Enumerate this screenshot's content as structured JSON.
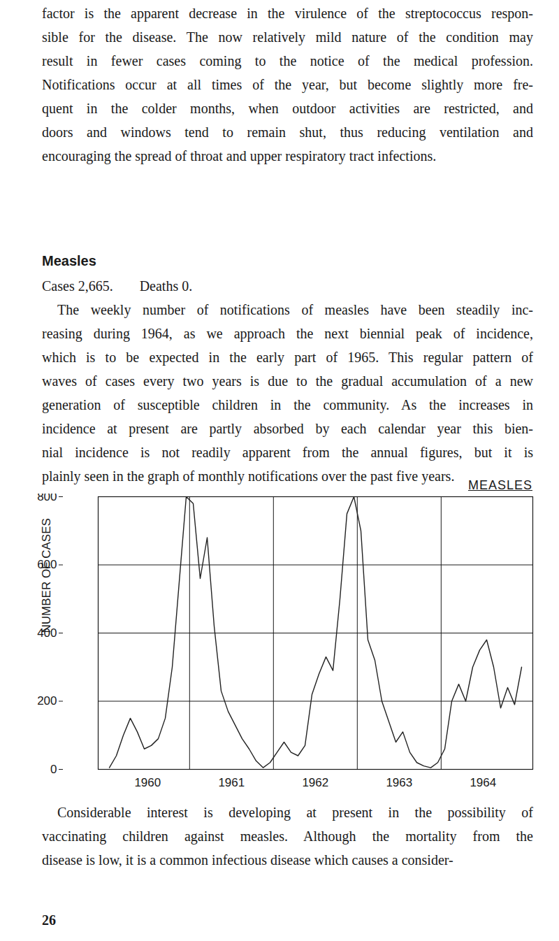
{
  "document": {
    "paragraph_1": [
      "factor is the apparent decrease in the virulence of the streptococcus respon-",
      "sible for the disease. The now relatively mild nature of the condition may",
      "result in fewer cases coming to the notice of the medical profession.",
      "Notifications occur at all times of the year, but become slightly more fre-",
      "quent in the colder months, when outdoor activities are restricted, and",
      "doors and windows tend to remain shut, thus reducing ventilation and",
      "encouraging the spread of throat and upper respiratory tract infections."
    ],
    "heading": "Measles",
    "stats": [
      "Cases 2,665.",
      "Deaths 0."
    ],
    "paragraph_2": [
      "The weekly number of notifications of measles have been steadily inc-",
      "reasing during 1964, as we approach the next biennial peak of incidence,",
      "which is to be expected in the early part of 1965. This regular pattern of",
      "waves of cases every two years is due to the gradual accumulation of a new",
      "generation of susceptible children in the community. As the increases in",
      "incidence at present are partly absorbed by each calendar year this bien-",
      "nial incidence is not readily apparent from the annual figures, but it is",
      "plainly seen in the graph of monthly notifications over the past five years."
    ],
    "paragraph_3": [
      "Considerable interest is developing at present in the possibility of",
      "vaccinating children against measles. Although the mortality from the",
      "disease is low, it is a common infectious disease which causes a consider-"
    ],
    "page_number": "26"
  },
  "chart_data": {
    "type": "line",
    "title": "MEASLES",
    "y_label": "NUMBER OF CASES",
    "categories": [
      null,
      null,
      null,
      null,
      null,
      null,
      "1960",
      null,
      null,
      null,
      null,
      null,
      null,
      null,
      null,
      null,
      null,
      null,
      "1961",
      null,
      null,
      null,
      null,
      null,
      null,
      null,
      null,
      null,
      null,
      null,
      "1962",
      null,
      null,
      null,
      null,
      null,
      null,
      null,
      null,
      null,
      null,
      null,
      "1963",
      null,
      null,
      null,
      null,
      null,
      null,
      null,
      null,
      null,
      null,
      null,
      "1964",
      null,
      null,
      null,
      null,
      null
    ],
    "values": [
      5,
      40,
      100,
      150,
      110,
      60,
      70,
      90,
      150,
      300,
      550,
      800,
      780,
      560,
      680,
      420,
      230,
      170,
      130,
      90,
      60,
      25,
      5,
      20,
      50,
      80,
      50,
      40,
      70,
      220,
      280,
      330,
      290,
      500,
      750,
      800,
      700,
      380,
      320,
      200,
      140,
      80,
      110,
      50,
      20,
      10,
      5,
      20,
      60,
      200,
      250,
      200,
      300,
      350,
      380,
      300,
      180,
      240,
      190,
      300
    ],
    "color": "#222222",
    "ylim": [
      0,
      800
    ],
    "yticks": [
      0,
      200,
      400,
      600,
      800
    ],
    "grid": true
  }
}
